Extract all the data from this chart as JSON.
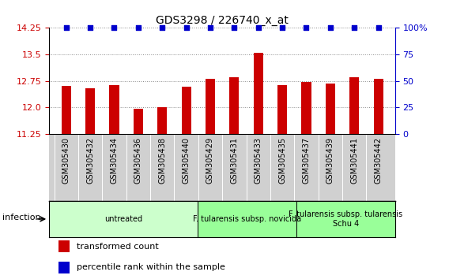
{
  "title": "GDS3298 / 226740_x_at",
  "samples": [
    "GSM305430",
    "GSM305432",
    "GSM305434",
    "GSM305436",
    "GSM305438",
    "GSM305440",
    "GSM305429",
    "GSM305431",
    "GSM305433",
    "GSM305435",
    "GSM305437",
    "GSM305439",
    "GSM305441",
    "GSM305442"
  ],
  "values": [
    12.6,
    12.55,
    12.62,
    11.97,
    12.01,
    12.58,
    12.82,
    12.85,
    13.55,
    12.62,
    12.72,
    12.67,
    12.85,
    12.82
  ],
  "percentile": [
    100,
    100,
    100,
    100,
    100,
    100,
    100,
    100,
    100,
    100,
    100,
    100,
    100,
    100
  ],
  "bar_color": "#cc0000",
  "dot_color": "#0000cc",
  "ylim_left": [
    11.25,
    14.25
  ],
  "ylim_right": [
    0,
    100
  ],
  "yticks_left": [
    11.25,
    12.0,
    12.75,
    13.5,
    14.25
  ],
  "yticks_right": [
    0,
    25,
    50,
    75,
    100
  ],
  "ytick_labels_right": [
    "0",
    "25",
    "50",
    "75",
    "100%"
  ],
  "groups": [
    {
      "label": "untreated",
      "start": 0,
      "end": 6,
      "color": "#ccffcc"
    },
    {
      "label": "F. tularensis subsp. novicida",
      "start": 6,
      "end": 10,
      "color": "#99ff99"
    },
    {
      "label": "F. tularensis subsp. tularensis\nSchu 4",
      "start": 10,
      "end": 14,
      "color": "#99ff99"
    }
  ],
  "group_label": "infection",
  "legend_items": [
    {
      "color": "#cc0000",
      "label": "transformed count"
    },
    {
      "color": "#0000cc",
      "label": "percentile rank within the sample"
    }
  ],
  "background_color": "#ffffff",
  "grid_color": "#888888",
  "tick_area_color": "#d0d0d0"
}
